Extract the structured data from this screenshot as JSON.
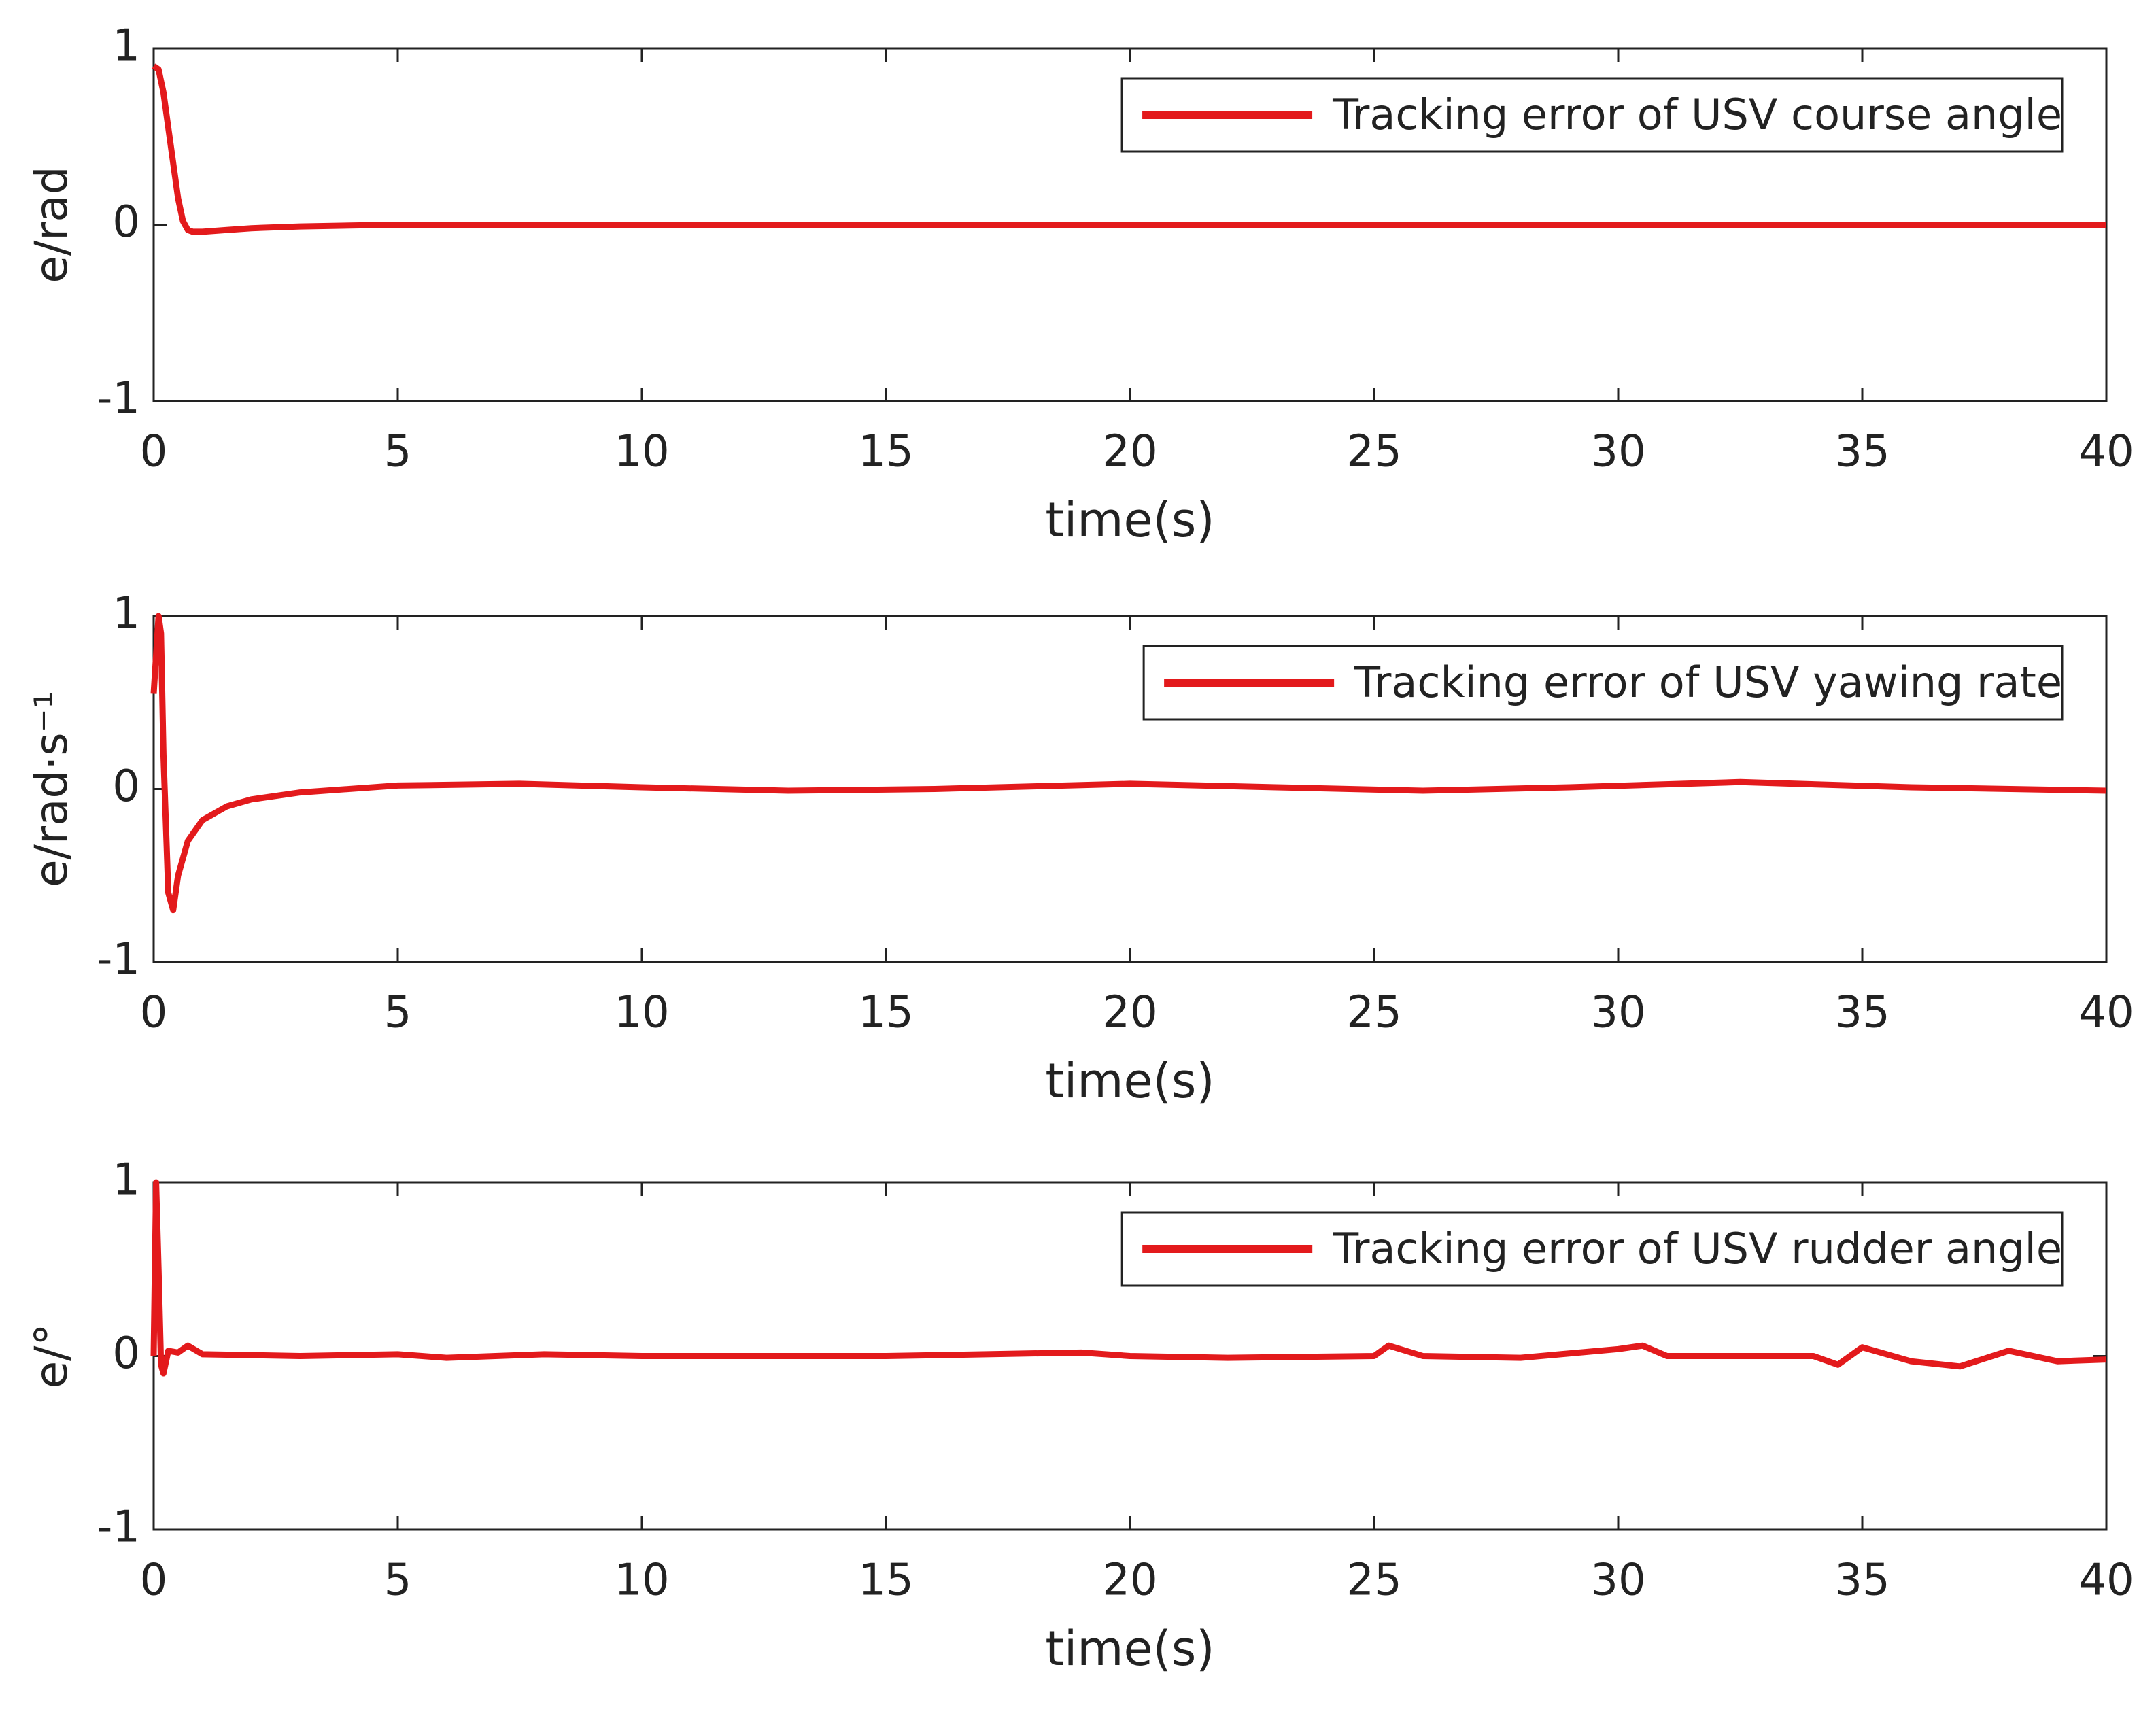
{
  "chart_data": [
    {
      "type": "line",
      "xlabel": "time(s)",
      "ylabel": "e/rad",
      "x": [
        0,
        0.1,
        0.2,
        0.3,
        0.4,
        0.5,
        0.6,
        0.7,
        0.8,
        1,
        1.5,
        2,
        3,
        5,
        10,
        15,
        20,
        25,
        30,
        35,
        40
      ],
      "series": [
        {
          "name": "Tracking error of USV course angle",
          "color": "#e31a1c",
          "values": [
            0.9,
            0.88,
            0.75,
            0.55,
            0.35,
            0.15,
            0.02,
            -0.03,
            -0.04,
            -0.04,
            -0.03,
            -0.02,
            -0.01,
            0,
            0,
            0,
            0,
            0,
            0,
            0,
            0
          ]
        }
      ],
      "xlim": [
        0,
        40
      ],
      "ylim": [
        -1,
        1
      ],
      "xticks": [
        0,
        5,
        10,
        15,
        20,
        25,
        30,
        35,
        40
      ],
      "yticks": [
        -1,
        0,
        1
      ],
      "legend": "upper right"
    },
    {
      "type": "line",
      "xlabel": "time(s)",
      "ylabel": "e/rad·s⁻¹",
      "x": [
        0,
        0.1,
        0.15,
        0.2,
        0.3,
        0.4,
        0.5,
        0.7,
        1,
        1.5,
        2,
        3,
        5,
        7.5,
        10,
        13,
        16,
        20,
        23,
        26,
        29,
        32.5,
        36,
        40
      ],
      "series": [
        {
          "name": "Tracking error of USV yawing rate",
          "color": "#e31a1c",
          "values": [
            0.55,
            1,
            0.9,
            0.2,
            -0.6,
            -0.7,
            -0.5,
            -0.3,
            -0.18,
            -0.1,
            -0.06,
            -0.02,
            0.02,
            0.03,
            0.01,
            -0.01,
            0,
            0.03,
            0.01,
            -0.01,
            0.01,
            0.04,
            0.01,
            -0.01
          ]
        }
      ],
      "xlim": [
        0,
        40
      ],
      "ylim": [
        -1,
        1
      ],
      "xticks": [
        0,
        5,
        10,
        15,
        20,
        25,
        30,
        35,
        40
      ],
      "yticks": [
        -1,
        0,
        1
      ],
      "legend": "upper right"
    },
    {
      "type": "line",
      "xlabel": "time(s)",
      "ylabel": "e/°",
      "x": [
        0,
        0.05,
        0.1,
        0.15,
        0.2,
        0.3,
        0.5,
        0.7,
        1,
        3,
        5,
        6,
        8,
        10,
        15,
        19,
        20,
        22,
        25,
        25.3,
        26,
        28,
        30,
        30.5,
        31,
        34,
        34.5,
        35,
        36,
        37,
        38,
        39,
        40
      ],
      "series": [
        {
          "name": "Tracking error of USV rudder angle",
          "color": "#e31a1c",
          "values": [
            0,
            1,
            0.5,
            -0.05,
            -0.1,
            0.03,
            0.02,
            0.06,
            0.01,
            0,
            0.01,
            -0.01,
            0.01,
            0,
            0,
            0.02,
            0,
            -0.01,
            0,
            0.06,
            0,
            -0.01,
            0.04,
            0.06,
            0,
            0,
            -0.05,
            0.05,
            -0.03,
            -0.06,
            0.03,
            -0.03,
            -0.02
          ]
        }
      ],
      "xlim": [
        0,
        40
      ],
      "ylim": [
        -1,
        1
      ],
      "xticks": [
        0,
        5,
        10,
        15,
        20,
        25,
        30,
        35,
        40
      ],
      "yticks": [
        -1,
        0,
        1
      ],
      "legend": "upper right"
    }
  ]
}
